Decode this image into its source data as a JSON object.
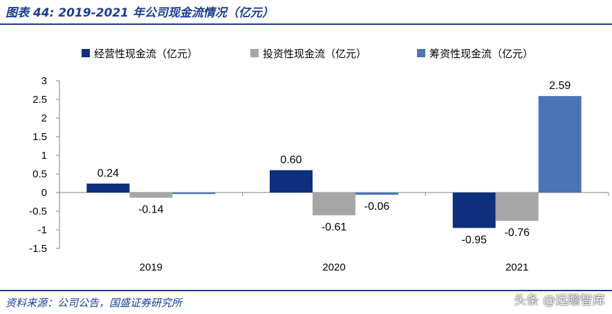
{
  "title": "图表 44:  2019-2021 年公司现金流情况（亿元）",
  "source": "资料来源：公司公告，国盛证券研究所",
  "watermark": "头条 @远瞻智库",
  "colors": {
    "brand": "#1a3d8f",
    "operating": "#0e2f7d",
    "investing": "#a6a6a6",
    "financing": "#4a75b5"
  },
  "chart_data": {
    "type": "bar",
    "title": "",
    "xlabel": "",
    "ylabel": "",
    "ylim": [
      -1.5,
      3
    ],
    "yticks": [
      3,
      2.5,
      2,
      1.5,
      1,
      0.5,
      0,
      -0.5,
      -1,
      -1.5
    ],
    "ytick_labels": [
      "3",
      "2.5",
      "2",
      "1.5",
      "1",
      "0.5",
      "0",
      "-0.5",
      "-1",
      "-1.5"
    ],
    "categories": [
      "2019",
      "2020",
      "2021"
    ],
    "legend_position": "top",
    "series": [
      {
        "name": "经营性现金流（亿元）",
        "color": "#0e2f7d",
        "values": [
          0.24,
          0.6,
          -0.95
        ],
        "labels": [
          "0.24",
          "0.60",
          "-0.95"
        ],
        "label_shown": [
          true,
          true,
          true
        ]
      },
      {
        "name": "投资性现金流（亿元）",
        "color": "#a6a6a6",
        "values": [
          -0.14,
          -0.61,
          -0.76
        ],
        "labels": [
          "-0.14",
          "-0.61",
          "-0.76"
        ],
        "label_shown": [
          true,
          true,
          true
        ]
      },
      {
        "name": "筹资性现金流（亿元）",
        "color": "#4a75b5",
        "values": [
          -0.04,
          -0.06,
          2.59
        ],
        "labels": [
          "",
          "-0.06",
          "2.59"
        ],
        "label_shown": [
          false,
          true,
          true
        ]
      }
    ]
  }
}
